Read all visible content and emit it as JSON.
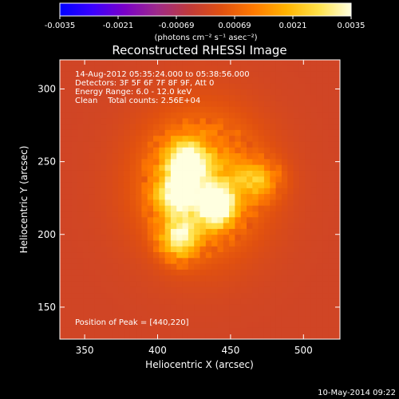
{
  "chart_data": {
    "type": "heatmap",
    "title": "Reconstructed RHESSI Image",
    "xlabel": "Heliocentric X (arcsec)",
    "ylabel": "Heliocentric Y (arcsec)",
    "xlim": [
      333,
      525
    ],
    "ylim": [
      128,
      320
    ],
    "xticks": [
      350,
      400,
      450,
      500
    ],
    "yticks": [
      150,
      200,
      250,
      300
    ],
    "xtick_labels": [
      "350",
      "400",
      "450",
      "500"
    ],
    "ytick_labels": [
      "150",
      "200",
      "250",
      "300"
    ],
    "annotations": {
      "time_range": "14-Aug-2012 05:35:24.000 to 05:38:56.000",
      "detectors": "Detectors: 3F 5F 6F 7F 8F 9F, Att 0",
      "energy_range": "Energy Range: 6.0 - 12.0 keV",
      "method_counts": "Clean    Total counts: 2.56E+04",
      "peak_position": "Position of Peak = [440,220]"
    },
    "peak": {
      "x": 440,
      "y": 220
    },
    "sources": [
      {
        "x": 440,
        "y": 220,
        "amp": 1.0,
        "sx": 9,
        "sy": 10
      },
      {
        "x": 420,
        "y": 248,
        "amp": 0.95,
        "sx": 10,
        "sy": 11
      },
      {
        "x": 412,
        "y": 226,
        "amp": 0.7,
        "sx": 9,
        "sy": 9
      },
      {
        "x": 415,
        "y": 198,
        "amp": 0.75,
        "sx": 9,
        "sy": 10
      },
      {
        "x": 468,
        "y": 238,
        "amp": 0.45,
        "sx": 11,
        "sy": 9
      },
      {
        "x": 430,
        "y": 235,
        "amp": 0.5,
        "sx": 30,
        "sy": 34
      }
    ],
    "colorbar": {
      "min": -0.0035,
      "max": 0.0035,
      "tick_labels": [
        "-0.0035",
        "-0.0021",
        "-0.00069",
        "0.00069",
        "0.0021",
        "0.0035"
      ],
      "unit_label": "(photons cm⁻² s⁻¹ asec⁻²)",
      "colormap": [
        "#0000ff",
        "#3a00ff",
        "#7a00c8",
        "#9e2a8a",
        "#c03a3a",
        "#e05010",
        "#ff7a00",
        "#ffb300",
        "#ffe24a",
        "#ffffe0"
      ]
    },
    "footer_date": "10-May-2014 09:22"
  }
}
